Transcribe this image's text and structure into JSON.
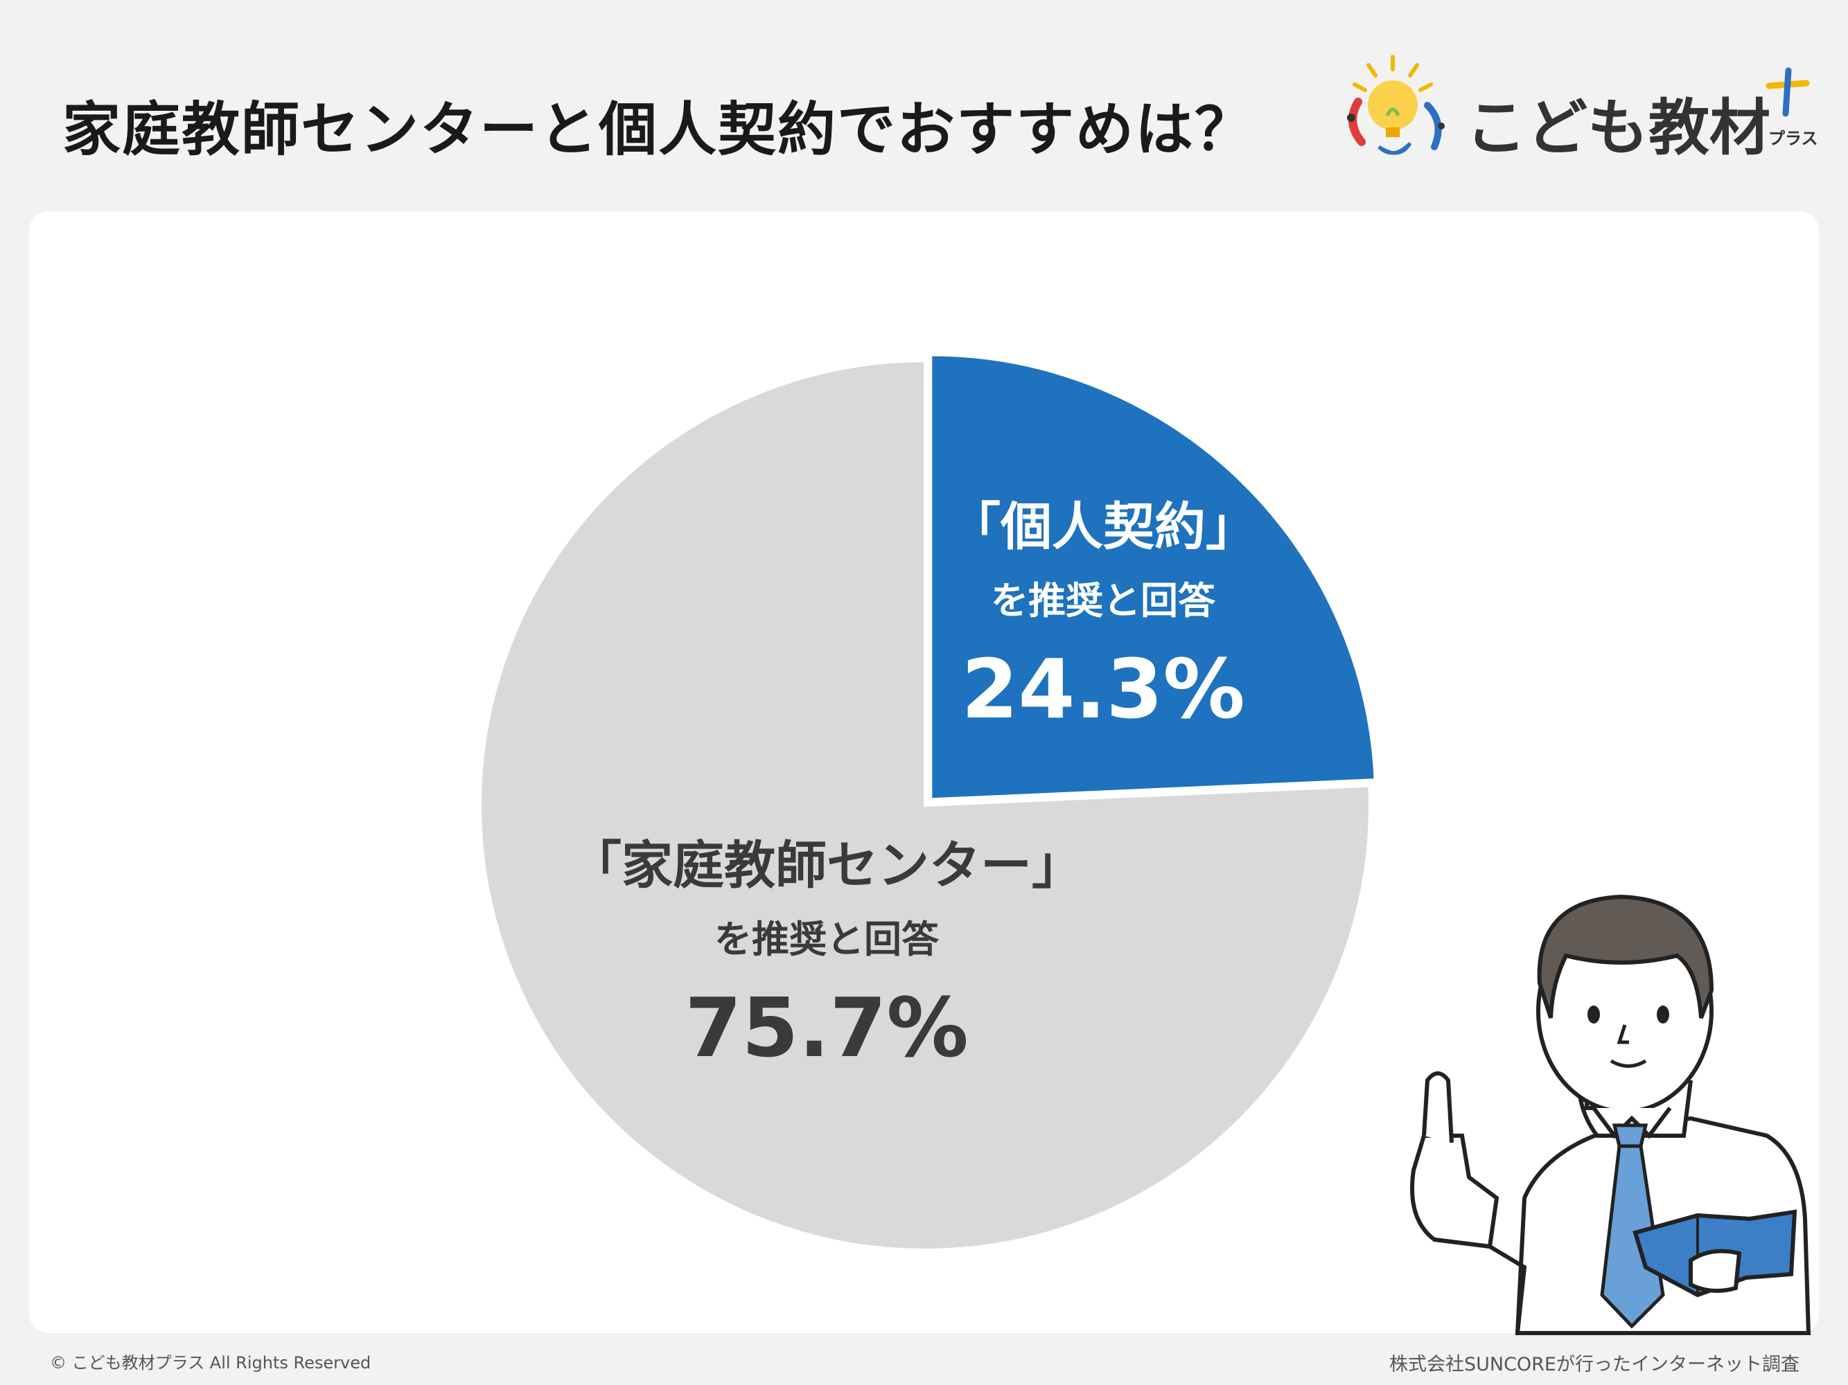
{
  "header": {
    "title": "家庭教師センターと個人契約でおすすめは？"
  },
  "logo": {
    "name": "こども教材",
    "suffix": "プラス"
  },
  "chart_data": {
    "type": "pie",
    "title": "",
    "start_angle_deg": 0,
    "direction": "clockwise",
    "slices": [
      {
        "name": "「個人契約」",
        "sub": "を推奨と回答",
        "value": 24.3,
        "display": "24.3%",
        "color": "#1e72be",
        "text_color": "#ffffff",
        "exploded": true
      },
      {
        "name": "「家庭教師センター」",
        "sub": "を推奨と回答",
        "value": 75.7,
        "display": "75.7%",
        "color": "#d9d9d9",
        "text_color": "#3a3a3a",
        "exploded": false
      }
    ]
  },
  "footer": {
    "copyright": "© こども教材プラス All Rights Reserved",
    "source": "株式会社SUNCOREが行ったインターネット調査"
  }
}
